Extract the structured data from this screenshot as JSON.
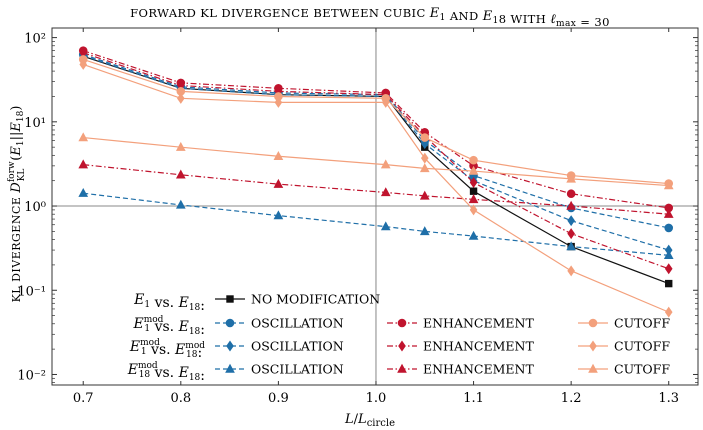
{
  "chart_data": {
    "type": "line",
    "title": "FORWARD KL DIVERGENCE BETWEEN CUBIC E1 AND E18 WITH ℓmax = 30",
    "xlabel": "L/Lcircle",
    "ylabel": "KL DIVERGENCE  D_KL^forw(E1||E18)",
    "yscale": "log",
    "xlim": [
      0.668,
      1.33
    ],
    "ylim": [
      0.0075,
      130
    ],
    "x_ticks": [
      "0.7",
      "0.8",
      "0.9",
      "1.0",
      "1.1",
      "1.2",
      "1.3"
    ],
    "y_ticks": [
      {
        "value": 100,
        "label": "10²"
      },
      {
        "value": 10,
        "label": "10¹"
      },
      {
        "value": 1,
        "label": "10⁰"
      },
      {
        "value": 0.1,
        "label": "10⁻¹"
      },
      {
        "value": 0.01,
        "label": "10⁻²"
      }
    ],
    "reference_lines": {
      "x": 1.0,
      "y": 1.0
    },
    "colors": {
      "black": "#111111",
      "blue": "#1f6fa8",
      "red": "#c0142e",
      "orange": "#f3a07c"
    },
    "series": [
      {
        "name": "NO MODIFICATION",
        "group": "E1 vs. E18",
        "color": "#111111",
        "marker": "square",
        "dash": "solid",
        "x": [
          0.7,
          0.8,
          0.9,
          1.01,
          1.05,
          1.1,
          1.2,
          1.3
        ],
        "y": [
          60,
          25,
          21,
          20,
          5.0,
          1.5,
          0.33,
          0.12
        ]
      },
      {
        "name": "OSCILLATION",
        "group": "E1mod vs. E18",
        "color": "#1f6fa8",
        "marker": "circle",
        "dash": "dashed",
        "x": [
          0.7,
          0.8,
          0.9,
          1.01,
          1.05,
          1.1,
          1.2,
          1.3
        ],
        "y": [
          63,
          26,
          22,
          21,
          6.0,
          2.3,
          0.95,
          0.55
        ]
      },
      {
        "name": "OSCILLATION",
        "group": "E1mod vs. E18mod",
        "color": "#1f6fa8",
        "marker": "diamond",
        "dash": "dashed",
        "x": [
          0.7,
          0.8,
          0.9,
          1.01,
          1.05,
          1.1,
          1.2,
          1.3
        ],
        "y": [
          61,
          25,
          21,
          20,
          5.5,
          2.0,
          0.67,
          0.3
        ]
      },
      {
        "name": "OSCILLATION",
        "group": "E18mod vs. E18",
        "color": "#1f6fa8",
        "marker": "triangle",
        "dash": "dashed",
        "x": [
          0.7,
          0.8,
          0.9,
          1.01,
          1.05,
          1.1,
          1.2,
          1.3
        ],
        "y": [
          1.42,
          1.03,
          0.77,
          0.57,
          0.5,
          0.44,
          0.33,
          0.26
        ]
      },
      {
        "name": "ENHANCEMENT",
        "group": "E1mod vs. E18",
        "color": "#c0142e",
        "marker": "circle",
        "dash": "dashdot",
        "x": [
          0.7,
          0.8,
          0.9,
          1.01,
          1.05,
          1.1,
          1.2,
          1.3
        ],
        "y": [
          70,
          29,
          25,
          22,
          7.5,
          3.0,
          1.4,
          0.95
        ]
      },
      {
        "name": "ENHANCEMENT",
        "group": "E1mod vs. E18mod",
        "color": "#c0142e",
        "marker": "diamond",
        "dash": "dashdot",
        "x": [
          0.7,
          0.8,
          0.9,
          1.01,
          1.05,
          1.1,
          1.2,
          1.3
        ],
        "y": [
          66,
          27,
          23,
          21,
          6.8,
          1.9,
          0.47,
          0.18
        ]
      },
      {
        "name": "ENHANCEMENT",
        "group": "E18mod vs. E18",
        "color": "#c0142e",
        "marker": "triangle",
        "dash": "dashdot",
        "x": [
          0.7,
          0.8,
          0.9,
          1.01,
          1.05,
          1.1,
          1.2,
          1.3
        ],
        "y": [
          3.1,
          2.35,
          1.82,
          1.45,
          1.32,
          1.2,
          1.0,
          0.8
        ]
      },
      {
        "name": "CUTOFF",
        "group": "E1mod vs. E18",
        "color": "#f3a07c",
        "marker": "circle",
        "dash": "solid",
        "x": [
          0.7,
          0.8,
          0.9,
          1.01,
          1.05,
          1.1,
          1.2,
          1.3
        ],
        "y": [
          55,
          23,
          20,
          19,
          6.5,
          3.5,
          2.3,
          1.85
        ]
      },
      {
        "name": "CUTOFF",
        "group": "E1mod vs. E18mod",
        "color": "#f3a07c",
        "marker": "diamond",
        "dash": "solid",
        "x": [
          0.7,
          0.8,
          0.9,
          1.01,
          1.05,
          1.1,
          1.2,
          1.3
        ],
        "y": [
          48,
          19,
          17,
          17,
          3.7,
          0.9,
          0.17,
          0.055
        ]
      },
      {
        "name": "CUTOFF",
        "group": "E18mod vs. E18",
        "color": "#f3a07c",
        "marker": "triangle",
        "dash": "solid",
        "x": [
          0.7,
          0.8,
          0.9,
          1.01,
          1.05,
          1.1,
          1.2,
          1.3
        ],
        "y": [
          6.5,
          5.0,
          3.9,
          3.1,
          2.8,
          2.6,
          2.1,
          1.75
        ]
      }
    ],
    "legend": {
      "placement": "lower-left",
      "rows": [
        {
          "label": "E1 vs. E18:",
          "entries": [
            {
              "series": 0,
              "text": "NO MODIFICATION"
            }
          ]
        },
        {
          "label": "E1mod vs. E18:",
          "entries": [
            {
              "series": 1,
              "text": "OSCILLATION"
            },
            {
              "series": 4,
              "text": "ENHANCEMENT"
            },
            {
              "series": 7,
              "text": "CUTOFF"
            }
          ]
        },
        {
          "label": "E1mod vs. E18mod:",
          "entries": [
            {
              "series": 2,
              "text": "OSCILLATION"
            },
            {
              "series": 5,
              "text": "ENHANCEMENT"
            },
            {
              "series": 8,
              "text": "CUTOFF"
            }
          ]
        },
        {
          "label": "E18mod vs. E18:",
          "entries": [
            {
              "series": 3,
              "text": "OSCILLATION"
            },
            {
              "series": 6,
              "text": "ENHANCEMENT"
            },
            {
              "series": 9,
              "text": "CUTOFF"
            }
          ]
        }
      ]
    }
  }
}
